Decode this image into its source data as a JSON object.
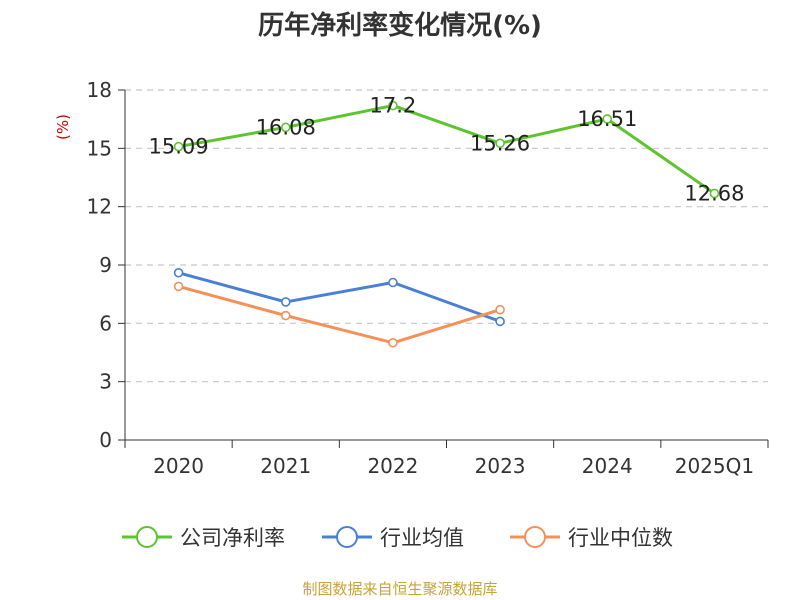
{
  "chart_data": {
    "type": "line",
    "title": "历年净利率变化情况(%)",
    "ylabel": "(%)",
    "categories": [
      "2020",
      "2021",
      "2022",
      "2023",
      "2024",
      "2025Q1"
    ],
    "ylim": [
      0,
      18
    ],
    "yticks": [
      0,
      3,
      6,
      9,
      12,
      15,
      18
    ],
    "grid": true,
    "legend_position": "bottom",
    "series": [
      {
        "name": "公司净利率",
        "values": [
          15.09,
          16.08,
          17.2,
          15.26,
          16.51,
          12.68
        ],
        "labels": [
          "15.09",
          "16.08",
          "17.2",
          "15.26",
          "16.51",
          "12.68"
        ],
        "color": "#5cc42c"
      },
      {
        "name": "行业均值",
        "values": [
          8.6,
          7.1,
          8.1,
          6.1,
          null,
          null
        ],
        "color": "#4a7fd8"
      },
      {
        "name": "行业中位数",
        "values": [
          7.9,
          6.4,
          5.0,
          6.7,
          null,
          null
        ],
        "color": "#f59058"
      }
    ]
  },
  "footer": {
    "source": "制图数据来自恒生聚源数据库"
  }
}
